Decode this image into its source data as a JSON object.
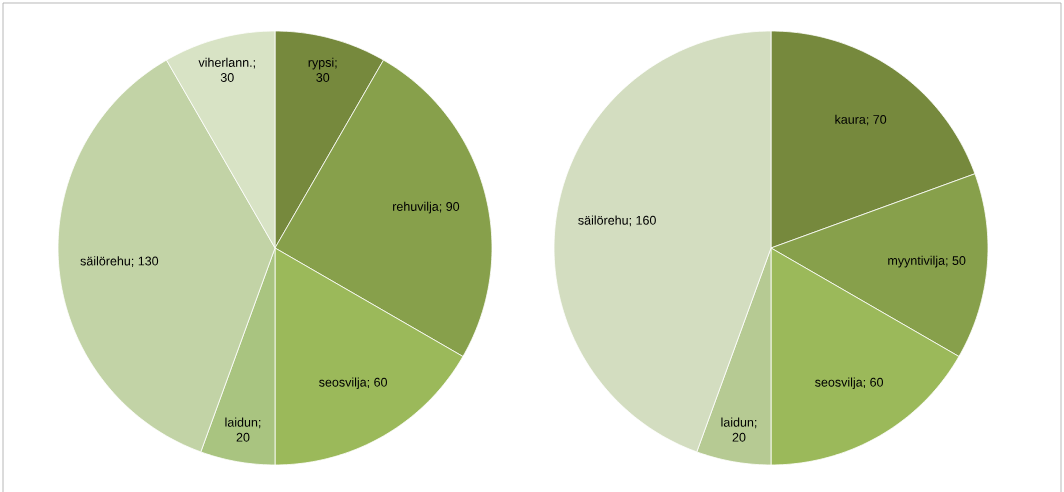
{
  "chart_data": [
    {
      "type": "pie",
      "categories": [
        "rypsi",
        "rehuvilja",
        "seosvilja",
        "laidun",
        "säilörehu",
        "viherlann."
      ],
      "values": [
        30,
        90,
        60,
        20,
        130,
        30
      ],
      "data_labels": true,
      "value_labels": [
        "; 30",
        "; 90",
        "; 60",
        "; 20",
        "; 130",
        "; 30"
      ],
      "colors": [
        "#76893d",
        "#87a04b",
        "#9bb95a",
        "#a9c480",
        "#c2d3a6",
        "#d8e3c5"
      ]
    },
    {
      "type": "pie",
      "categories": [
        "kaura",
        "myyntivilja",
        "seosvilja",
        "laidun",
        "säilörehu"
      ],
      "values": [
        70,
        50,
        60,
        20,
        160
      ],
      "data_labels": true,
      "value_labels": [
        "; 70",
        "; 50",
        "; 60",
        "; 20",
        "; 160"
      ],
      "colors": [
        "#76893d",
        "#87a04b",
        "#9bb95a",
        "#b6ca93",
        "#d3ddc0"
      ]
    }
  ]
}
